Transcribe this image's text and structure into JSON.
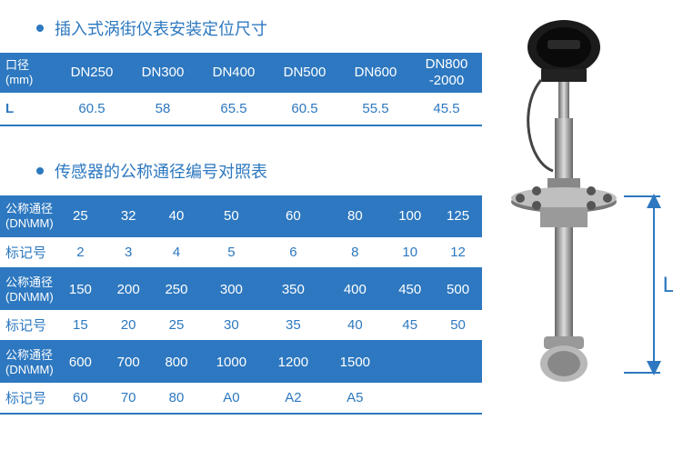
{
  "colors": {
    "primary": "#2d78c0",
    "text_on_primary": "#ffffff",
    "background": "#ffffff"
  },
  "section1": {
    "title": "插入式涡街仪表安装定位尺寸",
    "head_label": {
      "l1": "口径",
      "l2": "(mm)"
    },
    "columns": [
      "DN250",
      "DN300",
      "DN400",
      "DN500",
      "DN600",
      "DN800\n-2000"
    ],
    "row_label": "L",
    "values": [
      "60.5",
      "58",
      "65.5",
      "60.5",
      "55.5",
      "45.5"
    ]
  },
  "section2": {
    "title": "传感器的公称通径编号对照表",
    "dn_label": {
      "l1": "公称通径",
      "l2": "(DN\\MM)"
    },
    "mark_label": "标记号",
    "blocks": [
      {
        "dn": [
          "25",
          "32",
          "40",
          "50",
          "60",
          "80",
          "100",
          "125"
        ],
        "mark": [
          "2",
          "3",
          "4",
          "5",
          "6",
          "8",
          "10",
          "12"
        ]
      },
      {
        "dn": [
          "150",
          "200",
          "250",
          "300",
          "350",
          "400",
          "450",
          "500"
        ],
        "mark": [
          "15",
          "20",
          "25",
          "30",
          "35",
          "40",
          "45",
          "50"
        ]
      },
      {
        "dn": [
          "600",
          "700",
          "800",
          "1000",
          "1200",
          "1500",
          "",
          ""
        ],
        "mark": [
          "60",
          "70",
          "80",
          "A0",
          "A2",
          "A5",
          "",
          ""
        ]
      }
    ]
  },
  "diagram": {
    "dim_label": "L"
  }
}
